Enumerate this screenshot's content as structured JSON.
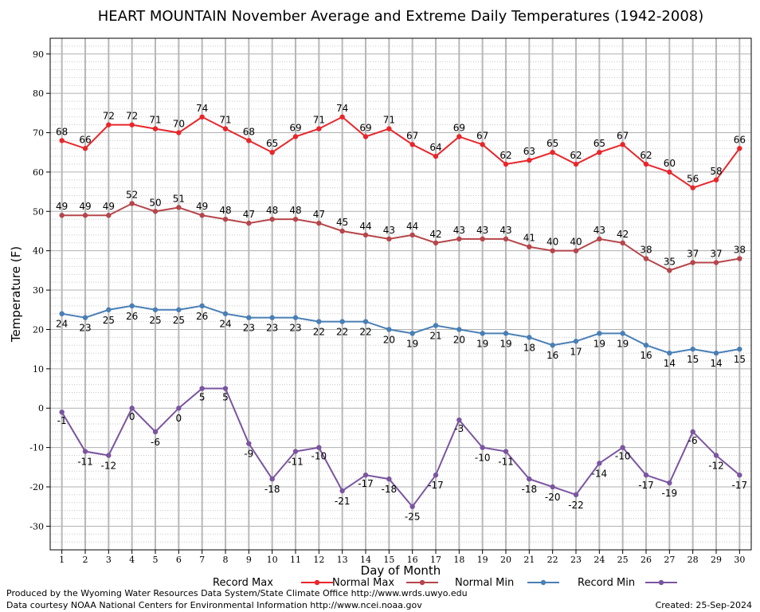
{
  "chart_data": {
    "type": "line",
    "title": "HEART MOUNTAIN November Average and Extreme Daily Temperatures (1942-2008)",
    "xlabel": "Day of Month",
    "ylabel": "Temperature (F)",
    "x": [
      1,
      2,
      3,
      4,
      5,
      6,
      7,
      8,
      9,
      10,
      11,
      12,
      13,
      14,
      15,
      16,
      17,
      18,
      19,
      20,
      21,
      22,
      23,
      24,
      25,
      26,
      27,
      28,
      29,
      30
    ],
    "xlim": [
      0.5,
      30.5
    ],
    "ylim": [
      -36,
      94
    ],
    "yticks": [
      -30,
      -20,
      -10,
      0,
      10,
      20,
      30,
      40,
      50,
      60,
      70,
      80,
      90
    ],
    "grid": true,
    "legend": "bottom",
    "series": [
      {
        "name": "Record Max",
        "color": "#e8262b",
        "values": [
          68,
          66,
          72,
          72,
          71,
          70,
          74,
          71,
          68,
          65,
          69,
          71,
          74,
          69,
          71,
          67,
          64,
          69,
          67,
          62,
          63,
          65,
          62,
          65,
          67,
          62,
          60,
          56,
          58,
          66
        ]
      },
      {
        "name": "Normal Max",
        "color": "#b5464b",
        "values": [
          49,
          49,
          49,
          52,
          50,
          51,
          49,
          48,
          47,
          48,
          48,
          47,
          45,
          44,
          43,
          44,
          42,
          43,
          43,
          43,
          41,
          40,
          40,
          43,
          42,
          38,
          35,
          37,
          37,
          38
        ]
      },
      {
        "name": "Normal Min",
        "color": "#4a7fb5",
        "values": [
          24,
          23,
          25,
          26,
          25,
          25,
          26,
          24,
          23,
          23,
          23,
          22,
          22,
          22,
          20,
          19,
          21,
          20,
          19,
          19,
          18,
          16,
          17,
          19,
          19,
          16,
          14,
          15,
          14,
          15
        ]
      },
      {
        "name": "Record Min",
        "color": "#7a55a0",
        "values": [
          -1,
          -11,
          -12,
          0,
          -6,
          0,
          5,
          5,
          -9,
          -18,
          -11,
          -10,
          -21,
          -17,
          -18,
          -25,
          -17,
          -3,
          -10,
          -11,
          -18,
          -20,
          -22,
          -14,
          -10,
          -17,
          -19,
          -6,
          -12,
          -17
        ]
      }
    ]
  },
  "footer": {
    "line1": "Produced by the Wyoming Water Resources Data System/State Climate Office http://www.wrds.uwyo.edu",
    "line2": "Data courtesy NOAA National Centers for Environmental Information http://www.ncei.noaa.gov",
    "created": "Created:  25-Sep-2024"
  }
}
